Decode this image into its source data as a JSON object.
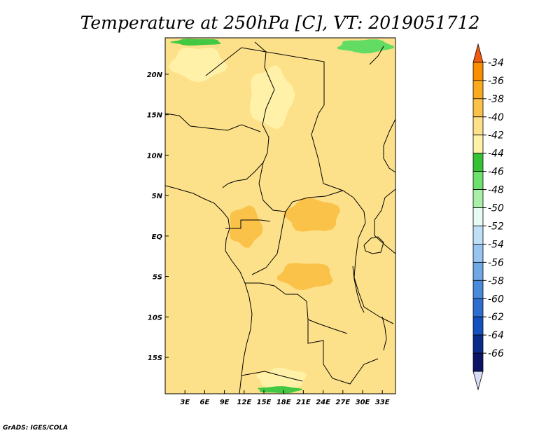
{
  "title": "Temperature at 250hPa [C], VT: 2019051712",
  "credit": "GrADS: IGES/COLA",
  "map": {
    "lon_range": [
      0,
      35
    ],
    "lat_range": [
      -19.5,
      24.5
    ],
    "x_tick_labels": [
      {
        "lon": 3,
        "label": "3E"
      },
      {
        "lon": 6,
        "label": "6E"
      },
      {
        "lon": 9,
        "label": "9E"
      },
      {
        "lon": 12,
        "label": "12E"
      },
      {
        "lon": 15,
        "label": "15E"
      },
      {
        "lon": 18,
        "label": "18E"
      },
      {
        "lon": 21,
        "label": "21E"
      },
      {
        "lon": 24,
        "label": "24E"
      },
      {
        "lon": 27,
        "label": "27E"
      },
      {
        "lon": 30,
        "label": "30E"
      },
      {
        "lon": 33,
        "label": "33E"
      }
    ],
    "y_tick_labels": [
      {
        "lat": 20,
        "label": "20N"
      },
      {
        "lat": 15,
        "label": "15N"
      },
      {
        "lat": 10,
        "label": "10N"
      },
      {
        "lat": 5,
        "label": "5N"
      },
      {
        "lat": 0,
        "label": "EQ"
      },
      {
        "lat": -5,
        "label": "5S"
      },
      {
        "lat": -10,
        "label": "10S"
      },
      {
        "lat": -15,
        "label": "15S"
      }
    ],
    "field_regions": [
      {
        "level": "-42",
        "color": "#fff2a8",
        "region": "northern-sahara-west",
        "lon": [
          0,
          10
        ],
        "lat": [
          19,
          24
        ]
      },
      {
        "level": "-42",
        "color": "#fff2a8",
        "region": "sahara-central",
        "lon": [
          12,
          20
        ],
        "lat": [
          13,
          22
        ]
      },
      {
        "level": "-42",
        "color": "#fff2a8",
        "region": "southern-angola",
        "lon": [
          13,
          22
        ],
        "lat": [
          -16,
          -19
        ]
      },
      {
        "level": "-44",
        "color": "#43c843",
        "region": "libya-north",
        "lon": [
          0,
          9
        ],
        "lat": [
          23.5,
          24.5
        ]
      },
      {
        "level": "-46",
        "color": "#63dc63",
        "region": "egypt-north",
        "lon": [
          25,
          35
        ],
        "lat": [
          22.5,
          24.5
        ]
      },
      {
        "level": "-44",
        "color": "#43c843",
        "region": "south-africa-north",
        "lon": [
          13,
          21
        ],
        "lat": [
          -18.5,
          -19.5
        ]
      },
      {
        "level": "-38",
        "color": "#fbc24a",
        "region": "congo-basin-north",
        "lon": [
          17,
          27
        ],
        "lat": [
          0,
          5
        ]
      },
      {
        "level": "-38",
        "color": "#fbc24a",
        "region": "congo-basin-south",
        "lon": [
          16,
          26
        ],
        "lat": [
          -3,
          -7
        ]
      },
      {
        "level": "-38",
        "color": "#fbc24a",
        "region": "gabon-cameroon",
        "lon": [
          9,
          15
        ],
        "lat": [
          -2,
          4
        ]
      }
    ]
  },
  "colorbar": {
    "levels": [
      "-34",
      "-36",
      "-38",
      "-40",
      "-42",
      "-44",
      "-46",
      "-48",
      "-50",
      "-52",
      "-54",
      "-56",
      "-58",
      "-60",
      "-62",
      "-64",
      "-66"
    ],
    "colors": [
      "#f25a11",
      "#fa8c00",
      "#fbaa1e",
      "#fbc24a",
      "#fde18a",
      "#fff2a8",
      "#35c335",
      "#6de06d",
      "#a8efa8",
      "#e6fbf4",
      "#bfdff7",
      "#97c5ef",
      "#6fa8e5",
      "#4a8ada",
      "#2e6ece",
      "#1550bf",
      "#0a2b8a",
      "#0b1466",
      "#d8dcf5"
    ]
  }
}
